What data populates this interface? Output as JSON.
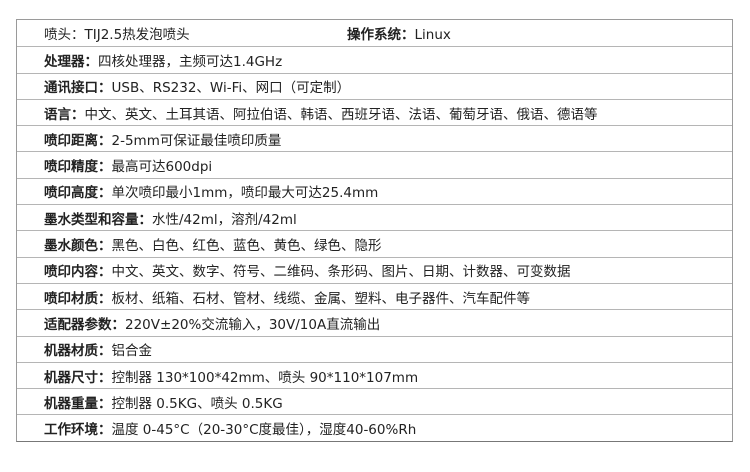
{
  "first_row": {
    "left": {
      "label": "喷头：",
      "value": "TIJ2.5热发泡喷头"
    },
    "right": {
      "label": "操作系统：",
      "value": "Linux"
    }
  },
  "rows": [
    {
      "label": "处理器：",
      "value": "四核处理器，主频可达1.4GHz"
    },
    {
      "label": "通讯接口：",
      "value": "USB、RS232、Wi-Fi、网口（可定制）"
    },
    {
      "label": "语言：",
      "value": "中文、英文、土耳其语、阿拉伯语、韩语、西班牙语、法语、葡萄牙语、俄语、德语等"
    },
    {
      "label": "喷印距离：",
      "value": "2-5mm可保证最佳喷印质量"
    },
    {
      "label": "喷印精度：",
      "value": "最高可达600dpi"
    },
    {
      "label": "喷印高度：",
      "value": "单次喷印最小1mm，喷印最大可达25.4mm"
    },
    {
      "label": "墨水类型和容量：",
      "value": "水性/42ml，溶剂/42ml"
    },
    {
      "label": "墨水颜色：",
      "value": "黑色、白色、红色、蓝色、黄色、绿色、隐形"
    },
    {
      "label": "喷印内容：",
      "value": "中文、英文、数字、符号、二维码、条形码、图片、日期、计数器、可变数据"
    },
    {
      "label": "喷印材质：",
      "value": "板材、纸箱、石材、管材、线缆、金属、塑料、电子器件、汽车配件等"
    },
    {
      "label": "适配器参数：",
      "value": "220V±20%交流输入，30V/10A直流输出"
    },
    {
      "label": "机器材质：",
      "value": "铝合金"
    },
    {
      "label": "机器尺寸：",
      "value": "控制器 130*100*42mm、喷头 90*110*107mm"
    },
    {
      "label": "机器重量：",
      "value": "控制器 0.5KG、喷头 0.5KG"
    },
    {
      "label": "工作环境：",
      "value": "温度 0-45°C（20-30°C度最佳），湿度40-60%Rh"
    }
  ]
}
